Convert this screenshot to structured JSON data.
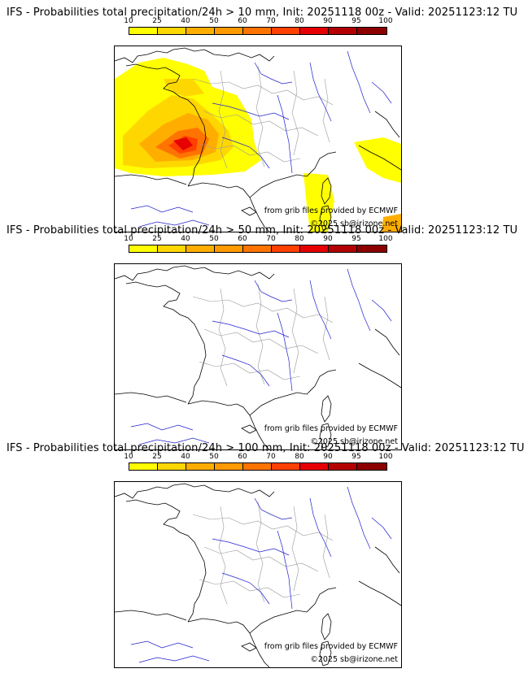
{
  "panels": [
    {
      "title": "IFS - Probabilities total precipitation/24h > 10 mm, Init: 20251118 00z - Valid: 20251123:12 TU",
      "threshold": "10 mm",
      "has_field": true
    },
    {
      "title": "IFS - Probabilities total precipitation/24h > 50 mm, Init: 20251118 00z - Valid: 20251123:12 TU",
      "threshold": "50 mm",
      "has_field": false
    },
    {
      "title": "IFS - Probabilities total precipitation/24h > 100 mm, Init: 20251118 00z - Valid: 20251123:12 TU",
      "threshold": "100 mm",
      "has_field": false
    }
  ],
  "colorbar": {
    "ticks": [
      "10",
      "25",
      "40",
      "50",
      "60",
      "70",
      "80",
      "90",
      "95",
      "100"
    ],
    "colors": [
      "#ffff00",
      "#ffd700",
      "#ffae00",
      "#ff9a00",
      "#ff7400",
      "#ff4000",
      "#e60000",
      "#b40000",
      "#8c0000"
    ]
  },
  "credits": {
    "source": "from grib files provided by ECMWF",
    "copyright": "©2025 sb@irizone.net"
  }
}
